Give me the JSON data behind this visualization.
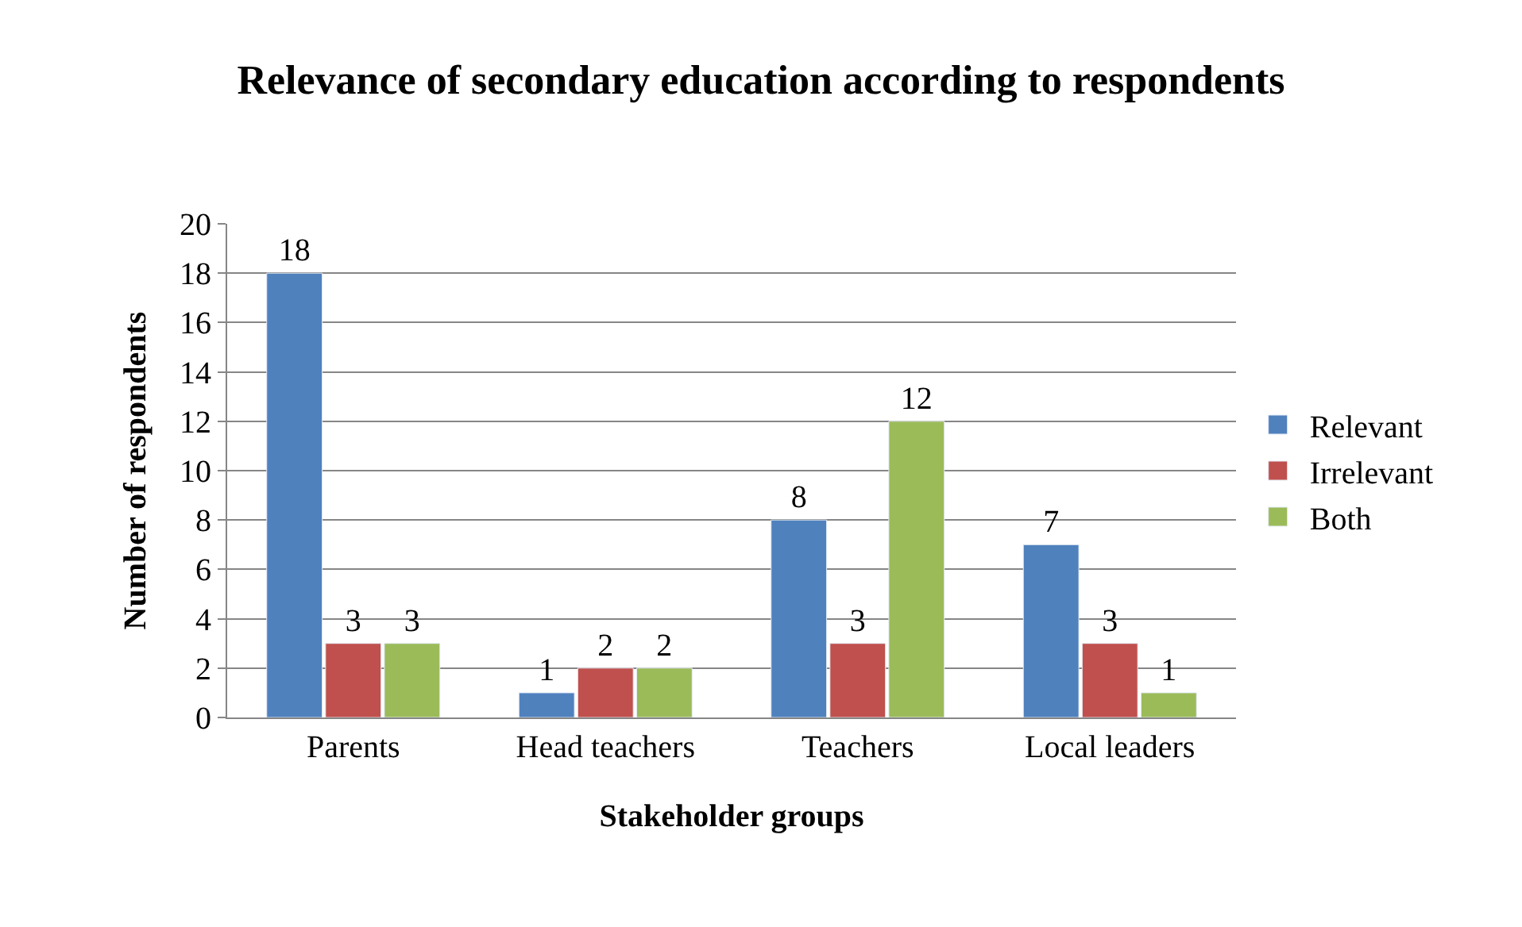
{
  "chart_data": {
    "type": "bar",
    "title": "Relevance of secondary education according to respondents",
    "xlabel": "Stakeholder groups",
    "ylabel": "Number of respondents",
    "categories": [
      "Parents",
      "Head teachers",
      "Teachers",
      "Local leaders"
    ],
    "series": [
      {
        "name": "Relevant",
        "color": "#4f81bd",
        "values": [
          18,
          1,
          8,
          7
        ]
      },
      {
        "name": "Irrelevant",
        "color": "#c0504d",
        "values": [
          3,
          2,
          3,
          3
        ]
      },
      {
        "name": "Both",
        "color": "#9bbb59",
        "values": [
          3,
          2,
          12,
          1
        ]
      }
    ],
    "ylim": [
      0,
      20
    ],
    "yticks": [
      0,
      2,
      4,
      6,
      8,
      10,
      12,
      14,
      16,
      18,
      20
    ],
    "grid": "y",
    "legend": "right",
    "data_labels": true
  }
}
